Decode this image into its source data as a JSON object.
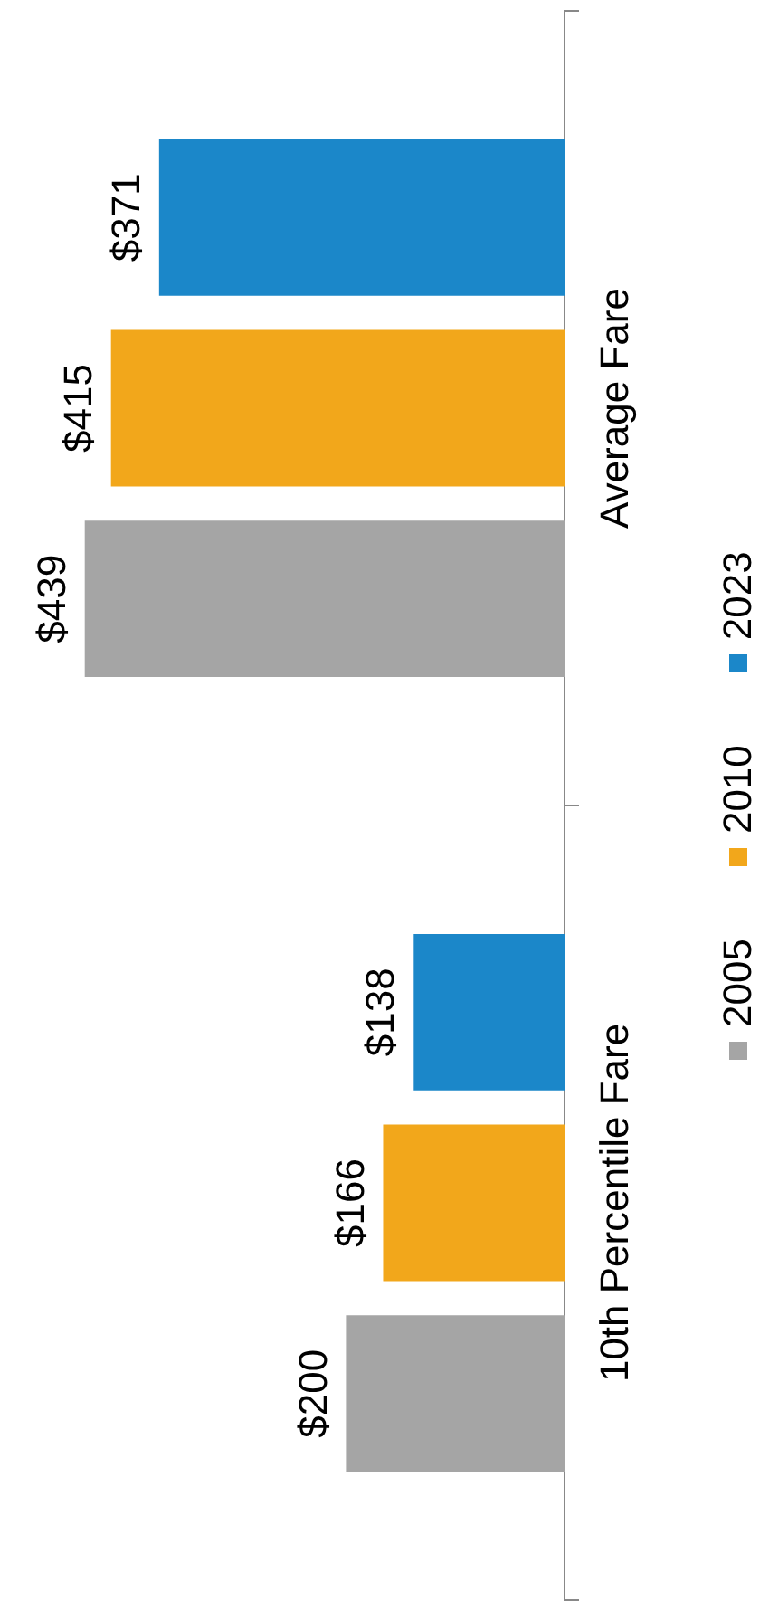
{
  "chart_data": {
    "type": "bar",
    "orientation": "horizontal",
    "categories": [
      "Average Fare",
      "10th Percentile Fare"
    ],
    "series": [
      {
        "name": "2023",
        "color": "#1b87c9",
        "values": [
          371,
          138
        ],
        "value_labels": [
          "$371",
          "$138"
        ]
      },
      {
        "name": "2010",
        "color": "#f2a71b",
        "values": [
          415,
          166
        ],
        "value_labels": [
          "$415",
          "$166"
        ]
      },
      {
        "name": "2005",
        "color": "#a5a5a5",
        "values": [
          439,
          200
        ],
        "value_labels": [
          "$439",
          "$200"
        ]
      }
    ],
    "legend": "right"
  }
}
